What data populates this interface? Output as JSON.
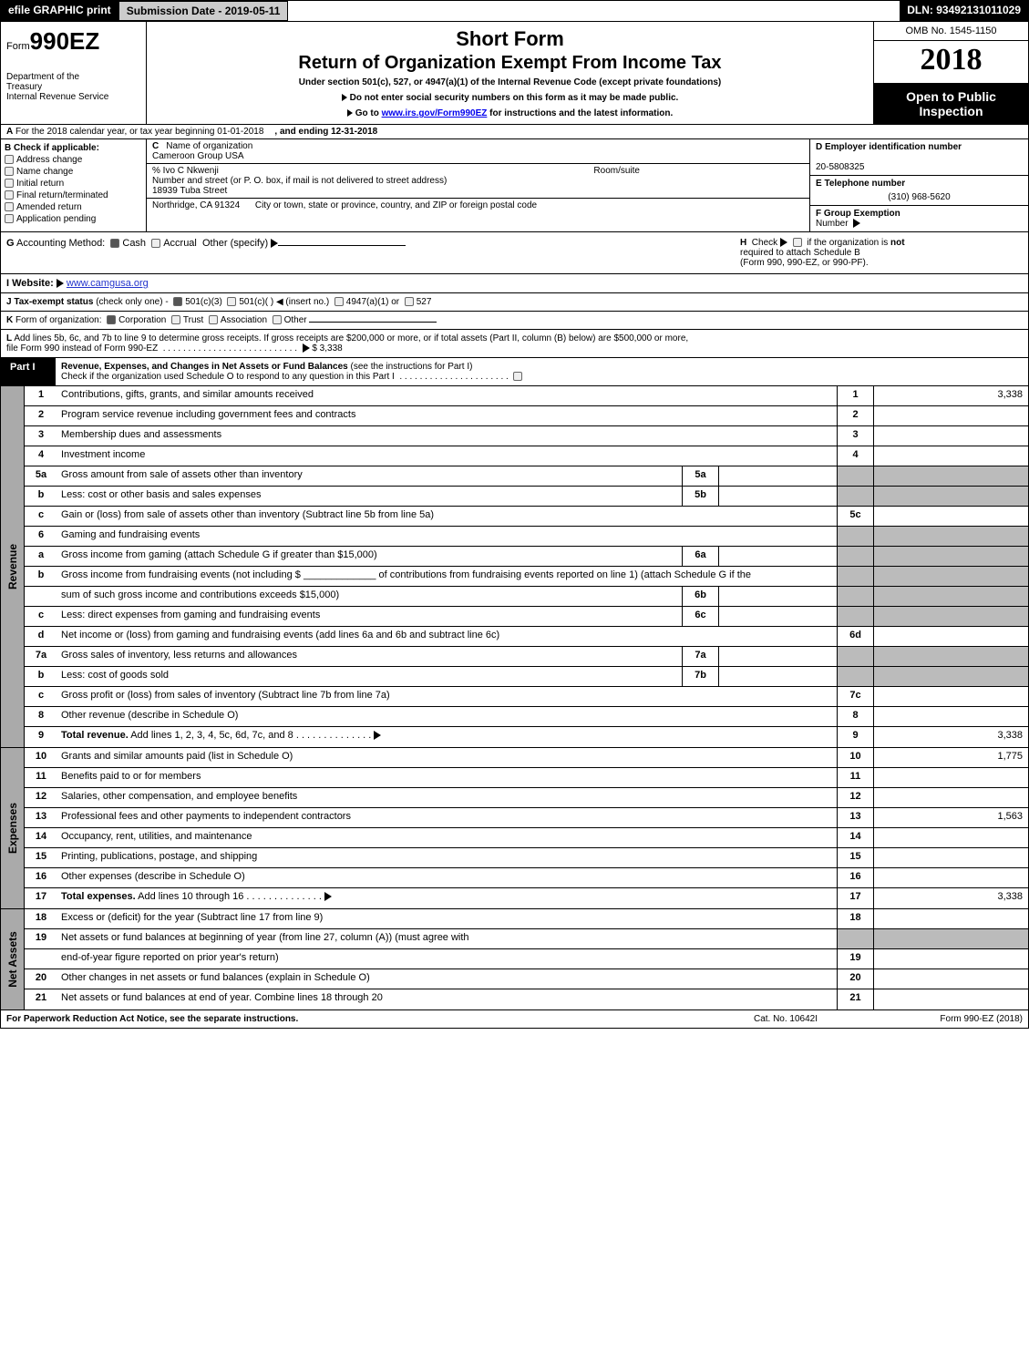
{
  "topbar": {
    "efile": "efile GRAPHIC print",
    "submission": "Submission Date - 2019-05-11",
    "dln": "DLN: 93492131011029"
  },
  "header": {
    "form_prefix": "Form",
    "form_number": "990EZ",
    "dept1": "Department of the",
    "dept2": "Treasury",
    "dept3": "Internal Revenue Service",
    "short_form": "Short Form",
    "return_title": "Return of Organization Exempt From Income Tax",
    "under": "Under section 501(c), 527, or 4947(a)(1) of the Internal Revenue Code (except private foundations)",
    "instr1": "Do not enter social security numbers on this form as it may be made public.",
    "instr2_pre": "Go to ",
    "instr2_link": "www.irs.gov/Form990EZ",
    "instr2_post": " for instructions and the latest information.",
    "omb": "OMB No. 1545-1150",
    "year": "2018",
    "open1": "Open to Public",
    "open2": "Inspection"
  },
  "row_a": {
    "a_label": "A",
    "a_text": "For the 2018 calendar year, or tax year beginning 01-01-2018",
    "a_end": ", and ending 12-31-2018"
  },
  "block_b": {
    "b_label": "B",
    "b_text": "Check if applicable:",
    "opts": [
      "Address change",
      "Name change",
      "Initial return",
      "Final return/terminated",
      "Amended return",
      "Application pending"
    ],
    "c_label": "C",
    "c_text": "Name of organization",
    "c_val": "Cameroon Group USA",
    "care_of": "% Ivo C Nkwenji",
    "addr_label": "Number and street (or P. O. box, if mail is not delivered to street address)",
    "room": "Room/suite",
    "addr_val": "18939 Tuba Street",
    "city_label": "City or town, state or province, country, and ZIP or foreign postal code",
    "city_val": "Northridge, CA  91324",
    "d_label": "D Employer identification number",
    "d_val": "20-5808325",
    "e_label": "E Telephone number",
    "e_val": "(310) 968-5620",
    "f_label": "F Group Exemption",
    "f_label2": "Number"
  },
  "accounting": {
    "g_label": "G",
    "g_text": "Accounting Method:",
    "cash": "Cash",
    "accrual": "Accrual",
    "other": "Other (specify)",
    "h_label": "H",
    "h_check": "Check",
    "h_text1": "if the organization is",
    "h_not": "not",
    "h_text2": "required to attach Schedule B",
    "h_text3": "(Form 990, 990-EZ, or 990-PF)."
  },
  "website": {
    "i_label": "I Website:",
    "url": "www.camgusa.org"
  },
  "taxstatus": {
    "j_label": "J Tax-exempt status",
    "j_note": "(check only one) -",
    "o1": "501(c)(3)",
    "o2": "501(c)(  )",
    "o2_note": "(insert no.)",
    "o3": "4947(a)(1) or",
    "o4": "527"
  },
  "kform": {
    "k_label": "K",
    "k_text": "Form of organization:",
    "o1": "Corporation",
    "o2": "Trust",
    "o3": "Association",
    "o4": "Other"
  },
  "lline": {
    "l_label": "L",
    "l_text": "Add lines 5b, 6c, and 7b to line 9 to determine gross receipts. If gross receipts are $200,000 or more, or if total assets (Part II, column (B) below) are $500,000 or more,",
    "l_text2": "file Form 990 instead of Form 990-EZ",
    "l_val": "$ 3,338"
  },
  "part1": {
    "tag": "Part I",
    "title": "Revenue, Expenses, and Changes in Net Assets or Fund Balances",
    "title_note": "(see the instructions for Part I)",
    "check_note": "Check if the organization used Schedule O to respond to any question in this Part I"
  },
  "revenue_lines": [
    {
      "n": "1",
      "t": "Contributions, gifts, grants, and similar amounts received",
      "tot": "1",
      "val": "3,338"
    },
    {
      "n": "2",
      "t": "Program service revenue including government fees and contracts",
      "tot": "2",
      "val": ""
    },
    {
      "n": "3",
      "t": "Membership dues and assessments",
      "tot": "3",
      "val": ""
    },
    {
      "n": "4",
      "t": "Investment income",
      "tot": "4",
      "val": ""
    },
    {
      "n": "5a",
      "t": "Gross amount from sale of assets other than inventory",
      "sub": "5a",
      "grey": true
    },
    {
      "n": "b",
      "t": "Less: cost or other basis and sales expenses",
      "sub": "5b",
      "grey": true
    },
    {
      "n": "c",
      "t": "Gain or (loss) from sale of assets other than inventory (Subtract line 5b from line 5a)",
      "tot": "5c",
      "val": ""
    },
    {
      "n": "6",
      "t": "Gaming and fundraising events",
      "grey": true,
      "noTot": true
    },
    {
      "n": "a",
      "t": "Gross income from gaming (attach Schedule G if greater than $15,000)",
      "sub": "6a",
      "grey": true
    },
    {
      "n": "b",
      "t": "Gross income from fundraising events (not including $ _____________ of contributions from fundraising events reported on line 1) (attach Schedule G if the",
      "grey": true,
      "noTot": true,
      "noSub": true
    },
    {
      "n": "",
      "t": "sum of such gross income and contributions exceeds $15,000)",
      "sub": "6b",
      "grey": true
    },
    {
      "n": "c",
      "t": "Less: direct expenses from gaming and fundraising events",
      "sub": "6c",
      "grey": true
    },
    {
      "n": "d",
      "t": "Net income or (loss) from gaming and fundraising events (add lines 6a and 6b and subtract line 6c)",
      "tot": "6d",
      "val": ""
    },
    {
      "n": "7a",
      "t": "Gross sales of inventory, less returns and allowances",
      "sub": "7a",
      "grey": true
    },
    {
      "n": "b",
      "t": "Less: cost of goods sold",
      "sub": "7b",
      "grey": true
    },
    {
      "n": "c",
      "t": "Gross profit or (loss) from sales of inventory (Subtract line 7b from line 7a)",
      "tot": "7c",
      "val": ""
    },
    {
      "n": "8",
      "t": "Other revenue (describe in Schedule O)",
      "tot": "8",
      "val": ""
    },
    {
      "n": "9",
      "t": "Total revenue. Add lines 1, 2, 3, 4, 5c, 6d, 7c, and 8",
      "tot": "9",
      "val": "3,338",
      "bold": true,
      "arrow": true
    }
  ],
  "expense_lines": [
    {
      "n": "10",
      "t": "Grants and similar amounts paid (list in Schedule O)",
      "tot": "10",
      "val": "1,775"
    },
    {
      "n": "11",
      "t": "Benefits paid to or for members",
      "tot": "11",
      "val": ""
    },
    {
      "n": "12",
      "t": "Salaries, other compensation, and employee benefits",
      "tot": "12",
      "val": ""
    },
    {
      "n": "13",
      "t": "Professional fees and other payments to independent contractors",
      "tot": "13",
      "val": "1,563"
    },
    {
      "n": "14",
      "t": "Occupancy, rent, utilities, and maintenance",
      "tot": "14",
      "val": ""
    },
    {
      "n": "15",
      "t": "Printing, publications, postage, and shipping",
      "tot": "15",
      "val": ""
    },
    {
      "n": "16",
      "t": "Other expenses (describe in Schedule O)",
      "tot": "16",
      "val": ""
    },
    {
      "n": "17",
      "t": "Total expenses. Add lines 10 through 16",
      "tot": "17",
      "val": "3,338",
      "bold": true,
      "arrow": true
    }
  ],
  "net_lines": [
    {
      "n": "18",
      "t": "Excess or (deficit) for the year (Subtract line 17 from line 9)",
      "tot": "18",
      "val": ""
    },
    {
      "n": "19",
      "t": "Net assets or fund balances at beginning of year (from line 27, column (A)) (must agree with",
      "grey": true,
      "noTot": true
    },
    {
      "n": "",
      "t": "end-of-year figure reported on prior year's return)",
      "tot": "19",
      "val": ""
    },
    {
      "n": "20",
      "t": "Other changes in net assets or fund balances (explain in Schedule O)",
      "tot": "20",
      "val": ""
    },
    {
      "n": "21",
      "t": "Net assets or fund balances at end of year. Combine lines 18 through 20",
      "tot": "21",
      "val": ""
    }
  ],
  "side_labels": {
    "revenue": "Revenue",
    "expenses": "Expenses",
    "net": "Net Assets"
  },
  "footer": {
    "left": "For Paperwork Reduction Act Notice, see the separate instructions.",
    "mid": "Cat. No. 10642I",
    "right": "Form 990-EZ (2018)"
  },
  "colors": {
    "black": "#000000",
    "grey_fill": "#bbbbbb",
    "side_grey": "#aaaaaa",
    "link": "#2233cc"
  }
}
